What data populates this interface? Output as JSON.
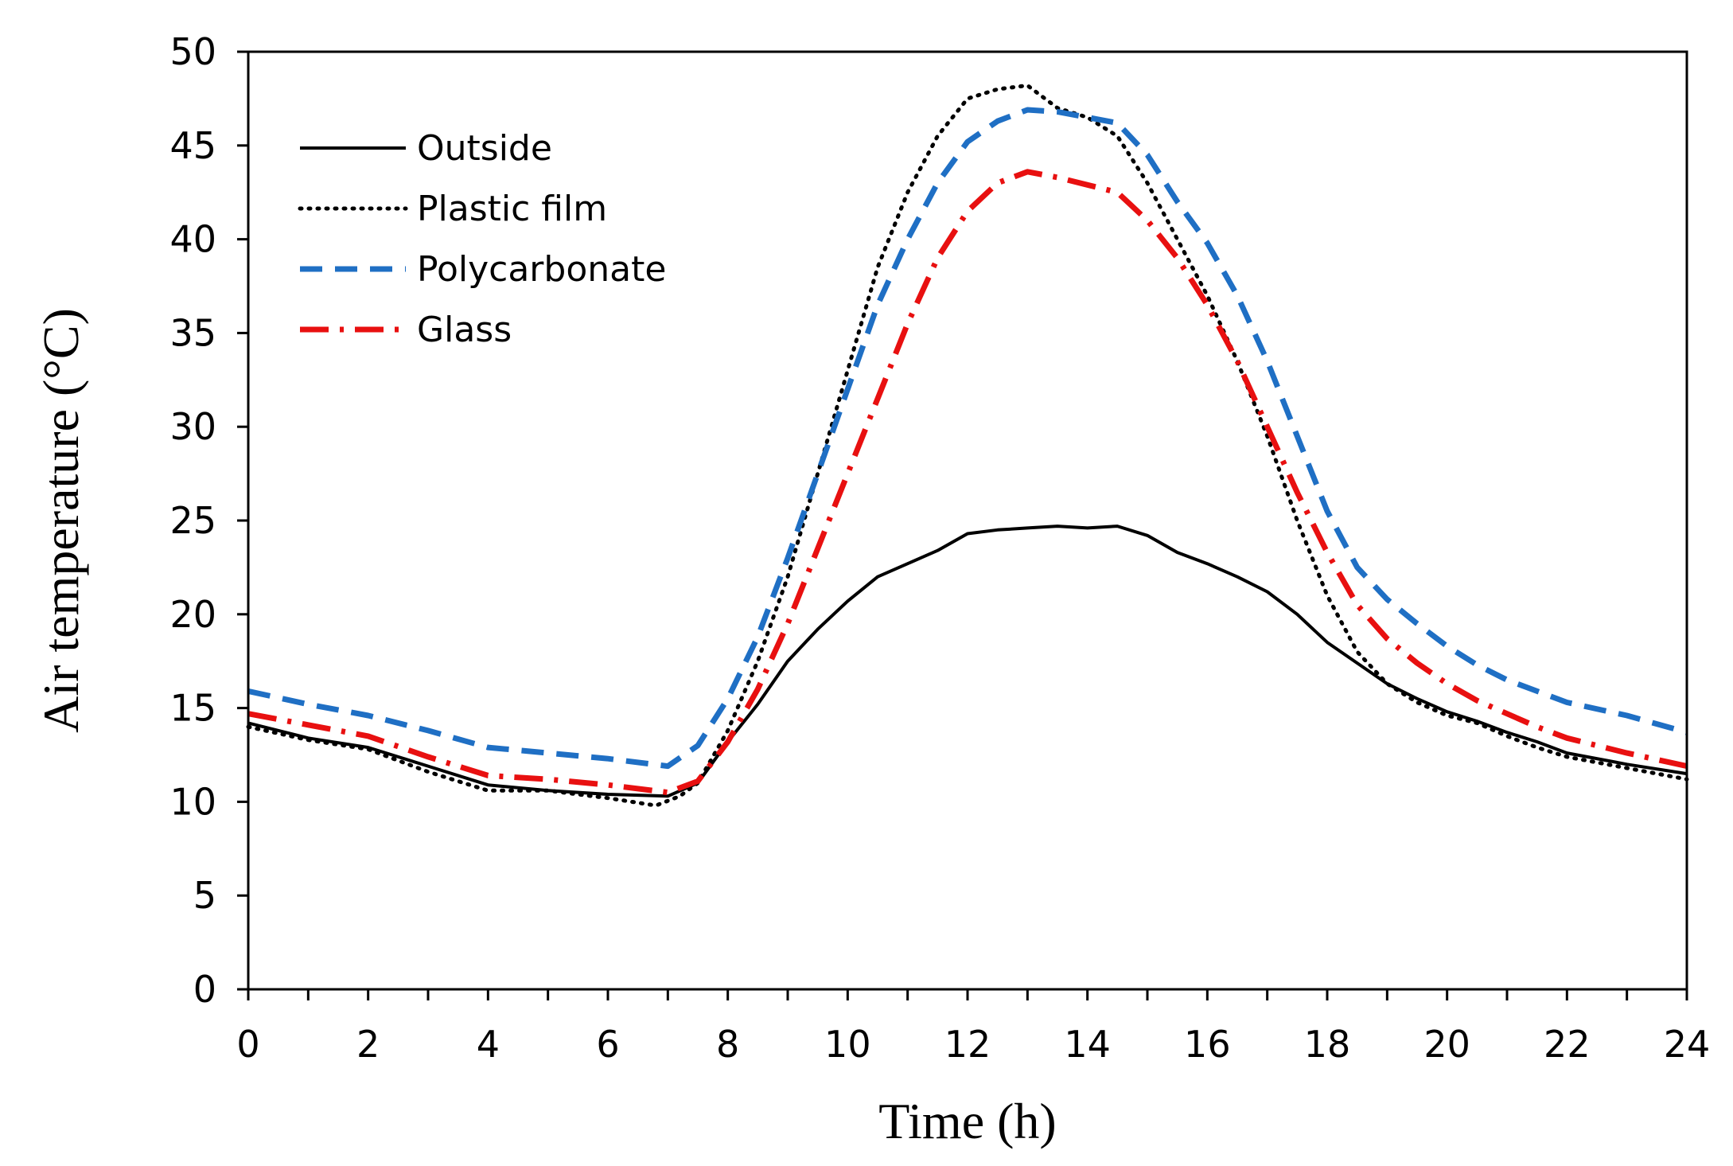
{
  "chart_data": {
    "type": "line",
    "title": "",
    "xlabel": "Time (h)",
    "ylabel": "Air temperature (°C)",
    "xlim": [
      0,
      24
    ],
    "ylim": [
      0,
      50
    ],
    "xticks": [
      "0",
      "2",
      "4",
      "6",
      "8",
      "10",
      "12",
      "14",
      "16",
      "18",
      "20",
      "22",
      "24"
    ],
    "yticks": [
      "0",
      "5",
      "10",
      "15",
      "20",
      "25",
      "30",
      "35",
      "40",
      "45",
      "50"
    ],
    "grid": false,
    "legend": "top-left",
    "series": [
      {
        "name": "Outside",
        "color": "#000000",
        "style": "solid",
        "points": [
          [
            0,
            14.2
          ],
          [
            1,
            13.4
          ],
          [
            2,
            12.9
          ],
          [
            3,
            11.9
          ],
          [
            4,
            10.9
          ],
          [
            5,
            10.6
          ],
          [
            6,
            10.4
          ],
          [
            7,
            10.3
          ],
          [
            7.5,
            11.0
          ],
          [
            8,
            13.2
          ],
          [
            8.5,
            15.2
          ],
          [
            9,
            17.5
          ],
          [
            9.5,
            19.2
          ],
          [
            10,
            20.7
          ],
          [
            10.5,
            22.0
          ],
          [
            11,
            22.7
          ],
          [
            11.5,
            23.4
          ],
          [
            12,
            24.3
          ],
          [
            12.5,
            24.5
          ],
          [
            13,
            24.6
          ],
          [
            13.5,
            24.7
          ],
          [
            14,
            24.6
          ],
          [
            14.5,
            24.7
          ],
          [
            15,
            24.2
          ],
          [
            15.5,
            23.3
          ],
          [
            16,
            22.7
          ],
          [
            16.5,
            22.0
          ],
          [
            17,
            21.2
          ],
          [
            17.5,
            20.0
          ],
          [
            18,
            18.5
          ],
          [
            18.5,
            17.4
          ],
          [
            19,
            16.3
          ],
          [
            19.5,
            15.5
          ],
          [
            20,
            14.8
          ],
          [
            20.5,
            14.3
          ],
          [
            21,
            13.7
          ],
          [
            21.5,
            13.2
          ],
          [
            22,
            12.6
          ],
          [
            23,
            12.0
          ],
          [
            24,
            11.5
          ]
        ]
      },
      {
        "name": "Plastic film",
        "color": "#000000",
        "style": "dotted",
        "points": [
          [
            0,
            14.0
          ],
          [
            1,
            13.3
          ],
          [
            2,
            12.8
          ],
          [
            3,
            11.6
          ],
          [
            4,
            10.6
          ],
          [
            5,
            10.6
          ],
          [
            6,
            10.2
          ],
          [
            6.8,
            9.8
          ],
          [
            7.2,
            10.3
          ],
          [
            7.5,
            11.0
          ],
          [
            8,
            13.8
          ],
          [
            8.5,
            17.5
          ],
          [
            9,
            22.0
          ],
          [
            9.5,
            27.5
          ],
          [
            10,
            33.0
          ],
          [
            10.5,
            38.5
          ],
          [
            11,
            42.5
          ],
          [
            11.5,
            45.5
          ],
          [
            12,
            47.5
          ],
          [
            12.5,
            48.0
          ],
          [
            13,
            48.2
          ],
          [
            13.5,
            47.0
          ],
          [
            14,
            46.5
          ],
          [
            14.5,
            45.5
          ],
          [
            15,
            43.0
          ],
          [
            15.5,
            40.0
          ],
          [
            16,
            37.0
          ],
          [
            16.5,
            33.5
          ],
          [
            17,
            29.5
          ],
          [
            17.5,
            25.0
          ],
          [
            18,
            21.0
          ],
          [
            18.5,
            18.0
          ],
          [
            19,
            16.3
          ],
          [
            19.5,
            15.3
          ],
          [
            20,
            14.6
          ],
          [
            20.5,
            14.2
          ],
          [
            21,
            13.5
          ],
          [
            21.5,
            12.9
          ],
          [
            22,
            12.4
          ],
          [
            23,
            11.8
          ],
          [
            24,
            11.2
          ]
        ]
      },
      {
        "name": "Polycarbonate",
        "color": "#1f6fc4",
        "style": "dashed",
        "points": [
          [
            0,
            15.9
          ],
          [
            1,
            15.2
          ],
          [
            2,
            14.6
          ],
          [
            3,
            13.8
          ],
          [
            4,
            12.9
          ],
          [
            5,
            12.6
          ],
          [
            6,
            12.3
          ],
          [
            7,
            11.9
          ],
          [
            7.5,
            13.0
          ],
          [
            8,
            15.5
          ],
          [
            8.5,
            18.8
          ],
          [
            9,
            23.0
          ],
          [
            9.5,
            27.5
          ],
          [
            10,
            32.0
          ],
          [
            10.5,
            36.5
          ],
          [
            11,
            40.0
          ],
          [
            11.5,
            43.0
          ],
          [
            12,
            45.2
          ],
          [
            12.5,
            46.3
          ],
          [
            13,
            46.9
          ],
          [
            13.5,
            46.8
          ],
          [
            14,
            46.5
          ],
          [
            14.5,
            46.2
          ],
          [
            15,
            44.5
          ],
          [
            15.5,
            42.0
          ],
          [
            16,
            39.8
          ],
          [
            16.5,
            37.0
          ],
          [
            17,
            33.5
          ],
          [
            17.5,
            29.5
          ],
          [
            18,
            25.5
          ],
          [
            18.5,
            22.5
          ],
          [
            19,
            20.8
          ],
          [
            19.5,
            19.5
          ],
          [
            20,
            18.3
          ],
          [
            20.5,
            17.3
          ],
          [
            21,
            16.5
          ],
          [
            21.5,
            15.9
          ],
          [
            22,
            15.3
          ],
          [
            23,
            14.6
          ],
          [
            24,
            13.7
          ]
        ]
      },
      {
        "name": "Glass",
        "color": "#e81010",
        "style": "dashdot",
        "points": [
          [
            0,
            14.7
          ],
          [
            1,
            14.1
          ],
          [
            2,
            13.5
          ],
          [
            3,
            12.4
          ],
          [
            4,
            11.4
          ],
          [
            5,
            11.2
          ],
          [
            6,
            10.9
          ],
          [
            7,
            10.5
          ],
          [
            7.5,
            11.1
          ],
          [
            8,
            13.2
          ],
          [
            8.5,
            16.0
          ],
          [
            9,
            19.5
          ],
          [
            9.5,
            23.5
          ],
          [
            10,
            27.5
          ],
          [
            10.5,
            31.5
          ],
          [
            11,
            35.5
          ],
          [
            11.5,
            39.0
          ],
          [
            12,
            41.5
          ],
          [
            12.5,
            43.0
          ],
          [
            13,
            43.6
          ],
          [
            13.5,
            43.3
          ],
          [
            14,
            42.9
          ],
          [
            14.5,
            42.5
          ],
          [
            15,
            41.0
          ],
          [
            15.5,
            39.0
          ],
          [
            16,
            36.5
          ],
          [
            16.5,
            33.5
          ],
          [
            17,
            30.0
          ],
          [
            17.5,
            26.5
          ],
          [
            18,
            23.3
          ],
          [
            18.5,
            20.5
          ],
          [
            19,
            18.7
          ],
          [
            19.5,
            17.4
          ],
          [
            20,
            16.3
          ],
          [
            20.5,
            15.4
          ],
          [
            21,
            14.7
          ],
          [
            21.5,
            14.0
          ],
          [
            22,
            13.4
          ],
          [
            23,
            12.6
          ],
          [
            24,
            11.9
          ]
        ]
      }
    ]
  }
}
